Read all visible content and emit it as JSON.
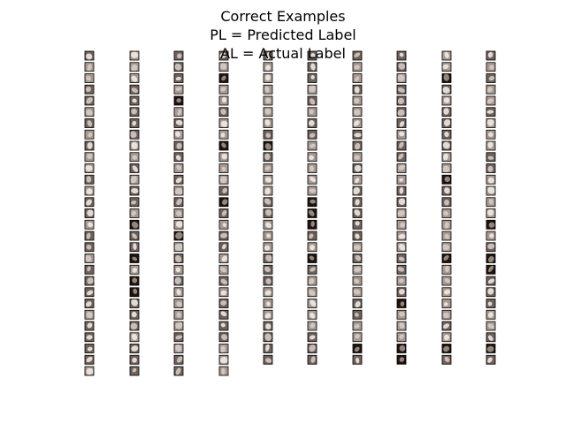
{
  "figure": {
    "title_lines": [
      "Correct Examples",
      "PL = Predicted Label",
      "AL = Actual Label"
    ],
    "columns": [
      {
        "thumbnail_count": 29
      },
      {
        "thumbnail_count": 29
      },
      {
        "thumbnail_count": 29
      },
      {
        "thumbnail_count": 29
      },
      {
        "thumbnail_count": 28
      },
      {
        "thumbnail_count": 28
      },
      {
        "thumbnail_count": 28
      },
      {
        "thumbnail_count": 28
      },
      {
        "thumbnail_count": 28
      },
      {
        "thumbnail_count": 28
      }
    ],
    "thumbnail_colormap": [
      "#1e140e",
      "#6f625a",
      "#a89a90",
      "#d9cfc8",
      "#f4efea"
    ]
  }
}
